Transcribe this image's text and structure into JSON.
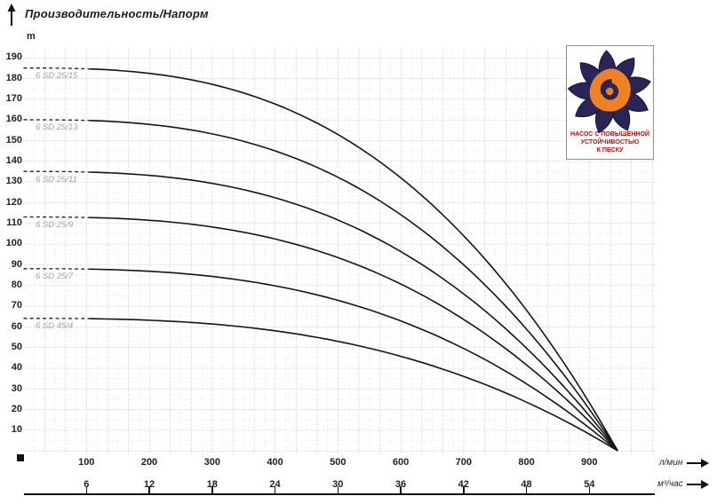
{
  "title": "Производительность/Напорм",
  "y_unit_label": "m",
  "axis_units": {
    "flow_primary": "л/мин",
    "flow_secondary": "м³/час"
  },
  "logo": {
    "lines": [
      "НАСОС С ПОВЫШЕННОЙ",
      "УСТОЙЧИВОСТЬЮ",
      "К ПЕСКУ"
    ],
    "text_color": "#c11111",
    "petal_color": "#2a2557",
    "swirl_color": "#ef8122"
  },
  "chart_data": {
    "type": "line",
    "title": "Производительность/Напорм",
    "ylabel": "m",
    "xlabel_primary": "л/мин",
    "xlabel_secondary": "м³/час",
    "x_ticks_lmin": [
      100,
      200,
      300,
      400,
      500,
      600,
      700,
      800,
      900
    ],
    "x_ticks_m3h": [
      6,
      12,
      18,
      24,
      30,
      36,
      42,
      48,
      54
    ],
    "y_ticks": [
      10,
      20,
      30,
      40,
      50,
      60,
      70,
      80,
      90,
      100,
      110,
      120,
      130,
      140,
      150,
      160,
      170,
      180,
      190
    ],
    "xlim_lmin": [
      0,
      945
    ],
    "ylim_m": [
      0,
      195
    ],
    "grid": true,
    "legend_position": "inline-curve-labels",
    "curve_exponent": 2.75,
    "dashed_until_lmin": 105,
    "series": [
      {
        "name": "6 SD 25/15",
        "shutoff_head_m": 185,
        "flows_lmin": [
          0,
          200,
          400,
          600,
          800,
          945
        ],
        "heads_m": [
          185,
          182,
          168,
          132,
          68,
          0
        ]
      },
      {
        "name": "6 SD 25/13",
        "shutoff_head_m": 160,
        "flows_lmin": [
          0,
          200,
          400,
          600,
          800,
          945
        ],
        "heads_m": [
          160,
          158,
          145,
          114,
          59,
          0
        ]
      },
      {
        "name": "6 SD 25/11",
        "shutoff_head_m": 135,
        "flows_lmin": [
          0,
          200,
          400,
          600,
          800,
          945
        ],
        "heads_m": [
          135,
          133,
          122,
          96,
          50,
          0
        ]
      },
      {
        "name": "6 SD 25/9",
        "shutoff_head_m": 113,
        "flows_lmin": [
          0,
          200,
          400,
          600,
          800,
          945
        ],
        "heads_m": [
          113,
          111,
          102,
          81,
          41,
          0
        ]
      },
      {
        "name": "6 SD 25/7",
        "shutoff_head_m": 88,
        "flows_lmin": [
          0,
          200,
          400,
          600,
          800,
          945
        ],
        "heads_m": [
          88,
          87,
          80,
          63,
          32,
          0
        ]
      },
      {
        "name": "6 SD 45/4",
        "shutoff_head_m": 64,
        "flows_lmin": [
          0,
          200,
          400,
          600,
          800,
          945
        ],
        "heads_m": [
          64,
          63,
          58,
          46,
          23,
          0
        ]
      }
    ]
  }
}
